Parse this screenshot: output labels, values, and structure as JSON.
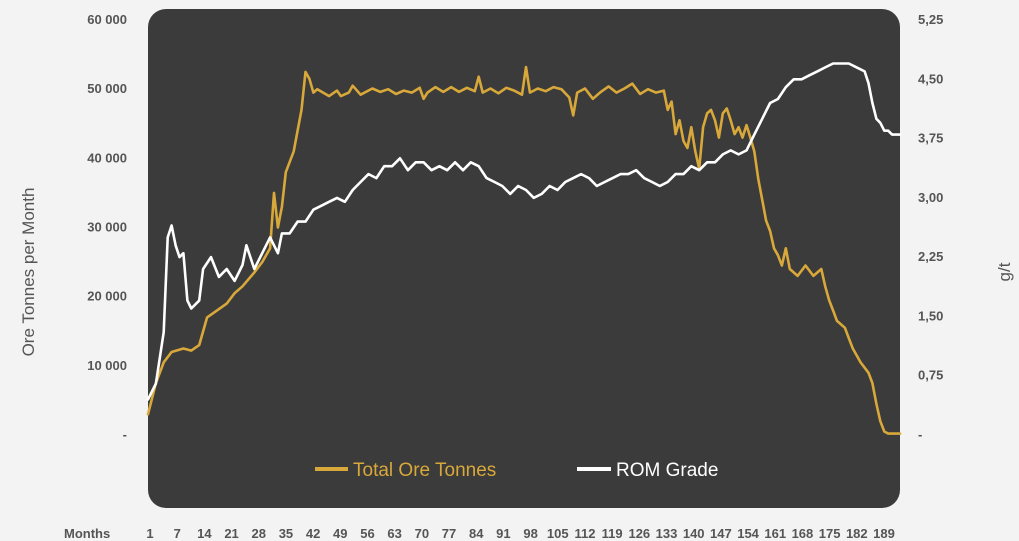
{
  "chart_data": {
    "type": "line",
    "left_axis": {
      "label": "Ore Tonnes per Month",
      "ticks": [
        {
          "value": 0,
          "label": "-"
        },
        {
          "value": 10000,
          "label": "10 000"
        },
        {
          "value": 20000,
          "label": "20 000"
        },
        {
          "value": 30000,
          "label": "30 000"
        },
        {
          "value": 40000,
          "label": "40 000"
        },
        {
          "value": 50000,
          "label": "50 000"
        },
        {
          "value": 60000,
          "label": "60 000"
        }
      ],
      "range": [
        0,
        60000
      ]
    },
    "right_axis": {
      "label": "g/t",
      "ticks": [
        {
          "value": 0,
          "label": "-"
        },
        {
          "value": 0.75,
          "label": "0,75"
        },
        {
          "value": 1.5,
          "label": "1,50"
        },
        {
          "value": 2.25,
          "label": "2,25"
        },
        {
          "value": 3.0,
          "label": "3,00"
        },
        {
          "value": 3.75,
          "label": "3,75"
        },
        {
          "value": 4.5,
          "label": "4,50"
        },
        {
          "value": 5.25,
          "label": "5,25"
        }
      ],
      "range": [
        0,
        5.25
      ]
    },
    "x_axis": {
      "label": "Months",
      "range": [
        1,
        192
      ],
      "tick_labels": [
        "1",
        "7",
        "14",
        "21",
        "28",
        "35",
        "42",
        "49",
        "56",
        "63",
        "70",
        "77",
        "84",
        "91",
        "98",
        "105",
        "112",
        "119",
        "126",
        "133",
        "140",
        "147",
        "154",
        "161",
        "168",
        "175",
        "182",
        "189"
      ]
    },
    "grid": false,
    "legend_position": "bottom",
    "series": [
      {
        "name": "Total Ore Tonnes",
        "axis": "left",
        "color": "#d8a83a",
        "points": [
          [
            1,
            3000
          ],
          [
            3,
            7500
          ],
          [
            5,
            10500
          ],
          [
            7,
            12000
          ],
          [
            10,
            12500
          ],
          [
            12,
            12200
          ],
          [
            14,
            13000
          ],
          [
            16,
            17000
          ],
          [
            18,
            17800
          ],
          [
            21,
            19000
          ],
          [
            23,
            20500
          ],
          [
            25,
            21500
          ],
          [
            28,
            23500
          ],
          [
            30,
            25000
          ],
          [
            32,
            27000
          ],
          [
            33,
            35000
          ],
          [
            34,
            30000
          ],
          [
            35,
            33000
          ],
          [
            36,
            38000
          ],
          [
            38,
            41000
          ],
          [
            40,
            47000
          ],
          [
            41,
            52500
          ],
          [
            42,
            51500
          ],
          [
            43,
            49500
          ],
          [
            44,
            50000
          ],
          [
            47,
            49000
          ],
          [
            49,
            49800
          ],
          [
            50,
            49000
          ],
          [
            52,
            49500
          ],
          [
            53,
            50500
          ],
          [
            55,
            49200
          ],
          [
            58,
            50100
          ],
          [
            60,
            49600
          ],
          [
            62,
            50000
          ],
          [
            64,
            49300
          ],
          [
            66,
            49800
          ],
          [
            68,
            49500
          ],
          [
            70,
            50200
          ],
          [
            71,
            48600
          ],
          [
            72,
            49500
          ],
          [
            74,
            50300
          ],
          [
            76,
            49600
          ],
          [
            78,
            50300
          ],
          [
            80,
            49600
          ],
          [
            82,
            50200
          ],
          [
            84,
            49700
          ],
          [
            85,
            51800
          ],
          [
            86,
            49500
          ],
          [
            88,
            50100
          ],
          [
            90,
            49400
          ],
          [
            92,
            50200
          ],
          [
            94,
            49800
          ],
          [
            96,
            49200
          ],
          [
            97,
            53200
          ],
          [
            98,
            49500
          ],
          [
            100,
            50100
          ],
          [
            102,
            49700
          ],
          [
            104,
            50300
          ],
          [
            106,
            50000
          ],
          [
            108,
            48800
          ],
          [
            109,
            46200
          ],
          [
            110,
            49500
          ],
          [
            112,
            50100
          ],
          [
            114,
            48600
          ],
          [
            116,
            49600
          ],
          [
            118,
            50400
          ],
          [
            120,
            49500
          ],
          [
            122,
            50100
          ],
          [
            124,
            50800
          ],
          [
            126,
            49300
          ],
          [
            128,
            50000
          ],
          [
            130,
            49500
          ],
          [
            132,
            49800
          ],
          [
            133,
            47000
          ],
          [
            134,
            48200
          ],
          [
            135,
            43500
          ],
          [
            136,
            45500
          ],
          [
            137,
            42500
          ],
          [
            138,
            41500
          ],
          [
            139,
            44500
          ],
          [
            140,
            41000
          ],
          [
            141,
            38500
          ],
          [
            142,
            44500
          ],
          [
            143,
            46500
          ],
          [
            144,
            47000
          ],
          [
            145,
            45500
          ],
          [
            146,
            43000
          ],
          [
            147,
            46500
          ],
          [
            148,
            47200
          ],
          [
            149,
            45500
          ],
          [
            150,
            43500
          ],
          [
            151,
            44500
          ],
          [
            152,
            43000
          ],
          [
            153,
            44800
          ],
          [
            154,
            43000
          ],
          [
            155,
            41000
          ],
          [
            156,
            37000
          ],
          [
            157,
            34000
          ],
          [
            158,
            31000
          ],
          [
            159,
            29500
          ],
          [
            160,
            27000
          ],
          [
            161,
            26000
          ],
          [
            162,
            24500
          ],
          [
            163,
            27000
          ],
          [
            164,
            24000
          ],
          [
            166,
            23000
          ],
          [
            168,
            24500
          ],
          [
            170,
            23000
          ],
          [
            172,
            24000
          ],
          [
            173,
            21500
          ],
          [
            174,
            19500
          ],
          [
            175,
            18000
          ],
          [
            176,
            16500
          ],
          [
            178,
            15500
          ],
          [
            179,
            14000
          ],
          [
            180,
            12500
          ],
          [
            182,
            10500
          ],
          [
            184,
            9000
          ],
          [
            185,
            7500
          ],
          [
            186,
            4500
          ],
          [
            187,
            2000
          ],
          [
            188,
            500
          ],
          [
            189,
            200
          ],
          [
            192,
            200
          ]
        ]
      },
      {
        "name": "ROM Grade",
        "axis": "right",
        "color": "#ffffff",
        "points": [
          [
            1,
            0.45
          ],
          [
            3,
            0.65
          ],
          [
            5,
            1.3
          ],
          [
            6,
            2.5
          ],
          [
            7,
            2.65
          ],
          [
            8,
            2.4
          ],
          [
            9,
            2.25
          ],
          [
            10,
            2.3
          ],
          [
            11,
            1.7
          ],
          [
            12,
            1.6
          ],
          [
            14,
            1.7
          ],
          [
            15,
            2.1
          ],
          [
            17,
            2.25
          ],
          [
            19,
            2.0
          ],
          [
            21,
            2.1
          ],
          [
            23,
            1.95
          ],
          [
            25,
            2.15
          ],
          [
            26,
            2.4
          ],
          [
            28,
            2.1
          ],
          [
            30,
            2.3
          ],
          [
            32,
            2.5
          ],
          [
            34,
            2.3
          ],
          [
            35,
            2.55
          ],
          [
            37,
            2.55
          ],
          [
            39,
            2.7
          ],
          [
            41,
            2.7
          ],
          [
            43,
            2.85
          ],
          [
            45,
            2.9
          ],
          [
            47,
            2.95
          ],
          [
            49,
            3.0
          ],
          [
            51,
            2.95
          ],
          [
            53,
            3.1
          ],
          [
            55,
            3.2
          ],
          [
            57,
            3.3
          ],
          [
            59,
            3.25
          ],
          [
            61,
            3.4
          ],
          [
            63,
            3.4
          ],
          [
            65,
            3.5
          ],
          [
            67,
            3.35
          ],
          [
            69,
            3.45
          ],
          [
            71,
            3.45
          ],
          [
            73,
            3.35
          ],
          [
            75,
            3.4
          ],
          [
            77,
            3.35
          ],
          [
            79,
            3.45
          ],
          [
            81,
            3.35
          ],
          [
            83,
            3.45
          ],
          [
            85,
            3.4
          ],
          [
            87,
            3.25
          ],
          [
            89,
            3.2
          ],
          [
            91,
            3.15
          ],
          [
            93,
            3.05
          ],
          [
            95,
            3.15
          ],
          [
            97,
            3.1
          ],
          [
            99,
            3.0
          ],
          [
            101,
            3.05
          ],
          [
            103,
            3.15
          ],
          [
            105,
            3.1
          ],
          [
            107,
            3.2
          ],
          [
            109,
            3.25
          ],
          [
            111,
            3.3
          ],
          [
            113,
            3.25
          ],
          [
            115,
            3.15
          ],
          [
            117,
            3.2
          ],
          [
            119,
            3.25
          ],
          [
            121,
            3.3
          ],
          [
            123,
            3.3
          ],
          [
            125,
            3.35
          ],
          [
            127,
            3.25
          ],
          [
            129,
            3.2
          ],
          [
            131,
            3.15
          ],
          [
            133,
            3.2
          ],
          [
            135,
            3.3
          ],
          [
            137,
            3.3
          ],
          [
            139,
            3.4
          ],
          [
            141,
            3.35
          ],
          [
            143,
            3.45
          ],
          [
            145,
            3.45
          ],
          [
            147,
            3.55
          ],
          [
            149,
            3.6
          ],
          [
            151,
            3.55
          ],
          [
            153,
            3.6
          ],
          [
            155,
            3.8
          ],
          [
            157,
            4.0
          ],
          [
            159,
            4.2
          ],
          [
            161,
            4.25
          ],
          [
            163,
            4.4
          ],
          [
            165,
            4.5
          ],
          [
            167,
            4.5
          ],
          [
            169,
            4.55
          ],
          [
            171,
            4.6
          ],
          [
            173,
            4.65
          ],
          [
            175,
            4.7
          ],
          [
            177,
            4.7
          ],
          [
            179,
            4.7
          ],
          [
            181,
            4.65
          ],
          [
            183,
            4.6
          ],
          [
            184,
            4.45
          ],
          [
            185,
            4.2
          ],
          [
            186,
            4.0
          ],
          [
            187,
            3.95
          ],
          [
            188,
            3.85
          ],
          [
            189,
            3.85
          ],
          [
            190,
            3.8
          ],
          [
            192,
            3.8
          ]
        ]
      }
    ]
  }
}
